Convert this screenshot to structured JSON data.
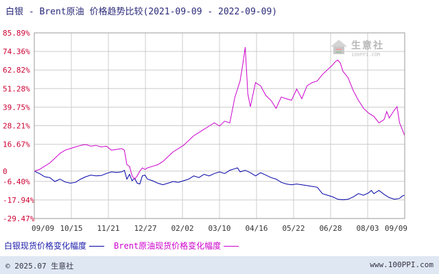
{
  "header": {
    "title": "白银 - Brent原油 价格趋势比较(2021-09-09 - 2022-09-09)"
  },
  "watermark": {
    "text": "生意社",
    "url": "100PPI.COM"
  },
  "footer": {
    "left": "© 2025.07 生意社",
    "right": "www.100PPI.com"
  },
  "colors": {
    "silver": "#0000a8",
    "brent": "#cc00cc",
    "grid": "#cccccc",
    "axis_text": "#cc0033"
  },
  "chart_data": {
    "type": "line",
    "title": "白银 - Brent原油 价格趋势比较(2021-09-09 - 2022-09-09)",
    "y_ticks": [
      "85.89%",
      "74.36%",
      "62.82%",
      "51.28%",
      "39.75%",
      "28.21%",
      "16.67%",
      "0",
      "-6.40%",
      "-17.94%",
      "-29.47%"
    ],
    "ylim": [
      -29.47,
      85.89
    ],
    "x_ticks": [
      "09/09",
      "10/15",
      "11/21",
      "12/27",
      "02/02",
      "03/10",
      "04/16",
      "05/22",
      "06/28",
      "08/03",
      "09/09"
    ],
    "series": [
      {
        "name": "白银现货价格变化幅度",
        "color": "#0000a8",
        "points": [
          [
            0,
            0
          ],
          [
            2,
            -1.5
          ],
          [
            4,
            -3.5
          ],
          [
            6,
            -4
          ],
          [
            8,
            -6.5
          ],
          [
            10,
            -5
          ],
          [
            12,
            -6.8
          ],
          [
            14,
            -7.5
          ],
          [
            16,
            -7
          ],
          [
            18,
            -5
          ],
          [
            20,
            -3.5
          ],
          [
            22,
            -2.5
          ],
          [
            24,
            -3
          ],
          [
            26,
            -2.8
          ],
          [
            28,
            -1.5
          ],
          [
            30,
            -0.5
          ],
          [
            32,
            -0.8
          ],
          [
            34,
            -0.5
          ],
          [
            35,
            0.5
          ],
          [
            36,
            -5
          ],
          [
            37,
            -2
          ],
          [
            38,
            -6
          ],
          [
            39,
            -4.5
          ],
          [
            40,
            -7.5
          ],
          [
            41,
            -8
          ],
          [
            42,
            -3
          ],
          [
            43,
            -2.5
          ],
          [
            44,
            -5
          ],
          [
            46,
            -6
          ],
          [
            48,
            -7.5
          ],
          [
            50,
            -8.5
          ],
          [
            52,
            -7.5
          ],
          [
            54,
            -6.5
          ],
          [
            56,
            -7
          ],
          [
            58,
            -6
          ],
          [
            60,
            -5
          ],
          [
            62,
            -3
          ],
          [
            64,
            -4
          ],
          [
            66,
            -2
          ],
          [
            68,
            -3
          ],
          [
            70,
            -1.5
          ],
          [
            72,
            -0.5
          ],
          [
            74,
            -1.5
          ],
          [
            76,
            0.5
          ],
          [
            78,
            1.5
          ],
          [
            79,
            2
          ],
          [
            80,
            -0.5
          ],
          [
            82,
            0.5
          ],
          [
            84,
            -1
          ],
          [
            86,
            -3
          ],
          [
            88,
            -1
          ],
          [
            90,
            -2.5
          ],
          [
            92,
            -4
          ],
          [
            94,
            -5
          ],
          [
            96,
            -7
          ],
          [
            98,
            -8
          ],
          [
            100,
            -8.5
          ],
          [
            102,
            -8
          ],
          [
            104,
            -8.5
          ],
          [
            106,
            -9
          ],
          [
            108,
            -9.5
          ],
          [
            110,
            -10
          ],
          [
            112,
            -14
          ],
          [
            114,
            -15
          ],
          [
            116,
            -16
          ],
          [
            118,
            -17.5
          ],
          [
            120,
            -17.8
          ],
          [
            122,
            -17.5
          ],
          [
            124,
            -16
          ],
          [
            126,
            -14
          ],
          [
            128,
            -15
          ],
          [
            130,
            -13.5
          ],
          [
            131,
            -12
          ],
          [
            132,
            -14
          ],
          [
            134,
            -12
          ],
          [
            136,
            -14.5
          ],
          [
            138,
            -16.5
          ],
          [
            140,
            -17.5
          ],
          [
            142,
            -17
          ],
          [
            143,
            -15.5
          ],
          [
            144,
            -15
          ]
        ]
      },
      {
        "name": "Brent原油现货价格变化幅度",
        "color": "#cc00cc",
        "points": [
          [
            0,
            0
          ],
          [
            2,
            1
          ],
          [
            4,
            3
          ],
          [
            6,
            5
          ],
          [
            8,
            8
          ],
          [
            10,
            11
          ],
          [
            12,
            13
          ],
          [
            14,
            14
          ],
          [
            16,
            15
          ],
          [
            18,
            16
          ],
          [
            20,
            16.5
          ],
          [
            22,
            15.5
          ],
          [
            24,
            16
          ],
          [
            26,
            15
          ],
          [
            28,
            15.5
          ],
          [
            30,
            13
          ],
          [
            32,
            13.5
          ],
          [
            34,
            14
          ],
          [
            35,
            13
          ],
          [
            36,
            4
          ],
          [
            37,
            3
          ],
          [
            38,
            -3
          ],
          [
            39,
            -5
          ],
          [
            40,
            -3
          ],
          [
            41,
            0
          ],
          [
            42,
            2
          ],
          [
            43,
            1
          ],
          [
            44,
            2
          ],
          [
            46,
            3
          ],
          [
            48,
            4
          ],
          [
            50,
            6
          ],
          [
            52,
            9
          ],
          [
            54,
            12
          ],
          [
            56,
            14
          ],
          [
            58,
            16
          ],
          [
            60,
            19
          ],
          [
            62,
            22
          ],
          [
            64,
            24
          ],
          [
            66,
            26
          ],
          [
            68,
            28
          ],
          [
            70,
            30
          ],
          [
            72,
            28
          ],
          [
            74,
            31
          ],
          [
            76,
            30
          ],
          [
            78,
            46
          ],
          [
            80,
            56
          ],
          [
            81,
            66
          ],
          [
            82,
            77
          ],
          [
            83,
            48
          ],
          [
            84,
            40
          ],
          [
            86,
            55
          ],
          [
            88,
            53
          ],
          [
            90,
            47
          ],
          [
            92,
            44
          ],
          [
            94,
            39
          ],
          [
            96,
            46
          ],
          [
            98,
            45
          ],
          [
            100,
            44
          ],
          [
            102,
            51
          ],
          [
            104,
            45
          ],
          [
            106,
            53
          ],
          [
            108,
            55
          ],
          [
            110,
            56
          ],
          [
            112,
            60
          ],
          [
            114,
            63
          ],
          [
            116,
            66
          ],
          [
            117,
            68
          ],
          [
            118,
            69
          ],
          [
            119,
            67
          ],
          [
            120,
            62
          ],
          [
            122,
            58
          ],
          [
            124,
            50
          ],
          [
            126,
            44
          ],
          [
            128,
            39
          ],
          [
            130,
            36
          ],
          [
            132,
            34
          ],
          [
            134,
            30
          ],
          [
            136,
            32
          ],
          [
            137,
            37
          ],
          [
            138,
            33
          ],
          [
            140,
            38
          ],
          [
            141,
            40
          ],
          [
            142,
            30
          ],
          [
            143,
            26
          ],
          [
            144,
            22
          ]
        ]
      }
    ],
    "x_total_points": 144,
    "legend": "bottom",
    "grid": true
  }
}
